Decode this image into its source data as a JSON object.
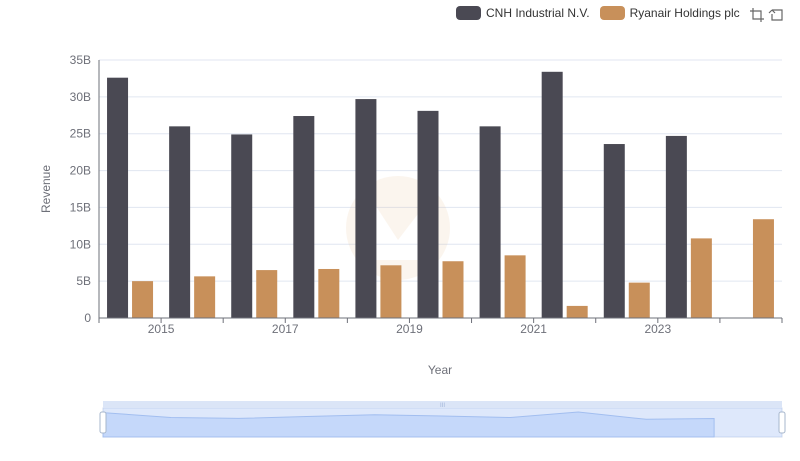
{
  "chart_data": {
    "type": "bar",
    "xlabel": "Year",
    "ylabel": "Revenue",
    "x": [
      2014,
      2015,
      2016,
      2017,
      2018,
      2019,
      2020,
      2021,
      2022,
      2023,
      2024
    ],
    "x_tick_labels": [
      "2015",
      "2017",
      "2019",
      "2021",
      "2023"
    ],
    "y_tick_labels": [
      "0",
      "5B",
      "10B",
      "15B",
      "20B",
      "25B",
      "30B",
      "35B"
    ],
    "ylim": [
      0,
      35000000000
    ],
    "grid": true,
    "legend_position": "top-right",
    "series": [
      {
        "name": "CNH Industrial N.V.",
        "color": "#4a4953",
        "values": [
          32600000000,
          26000000000,
          24900000000,
          27400000000,
          29700000000,
          28100000000,
          26000000000,
          33400000000,
          23600000000,
          24700000000,
          null
        ]
      },
      {
        "name": "Ryanair Holdings plc",
        "color": "#c8905a",
        "values": [
          5000000000,
          5650000000,
          6500000000,
          6650000000,
          7150000000,
          7700000000,
          8500000000,
          1640000000,
          4800000000,
          10800000000,
          13400000000
        ]
      }
    ]
  },
  "toolbar": {
    "zoom_icon": "zoom-select-icon",
    "reset_icon": "zoom-reset-icon"
  },
  "data_zoom": {
    "start_fraction": 0,
    "end_fraction": 1,
    "handle_label": "III"
  }
}
